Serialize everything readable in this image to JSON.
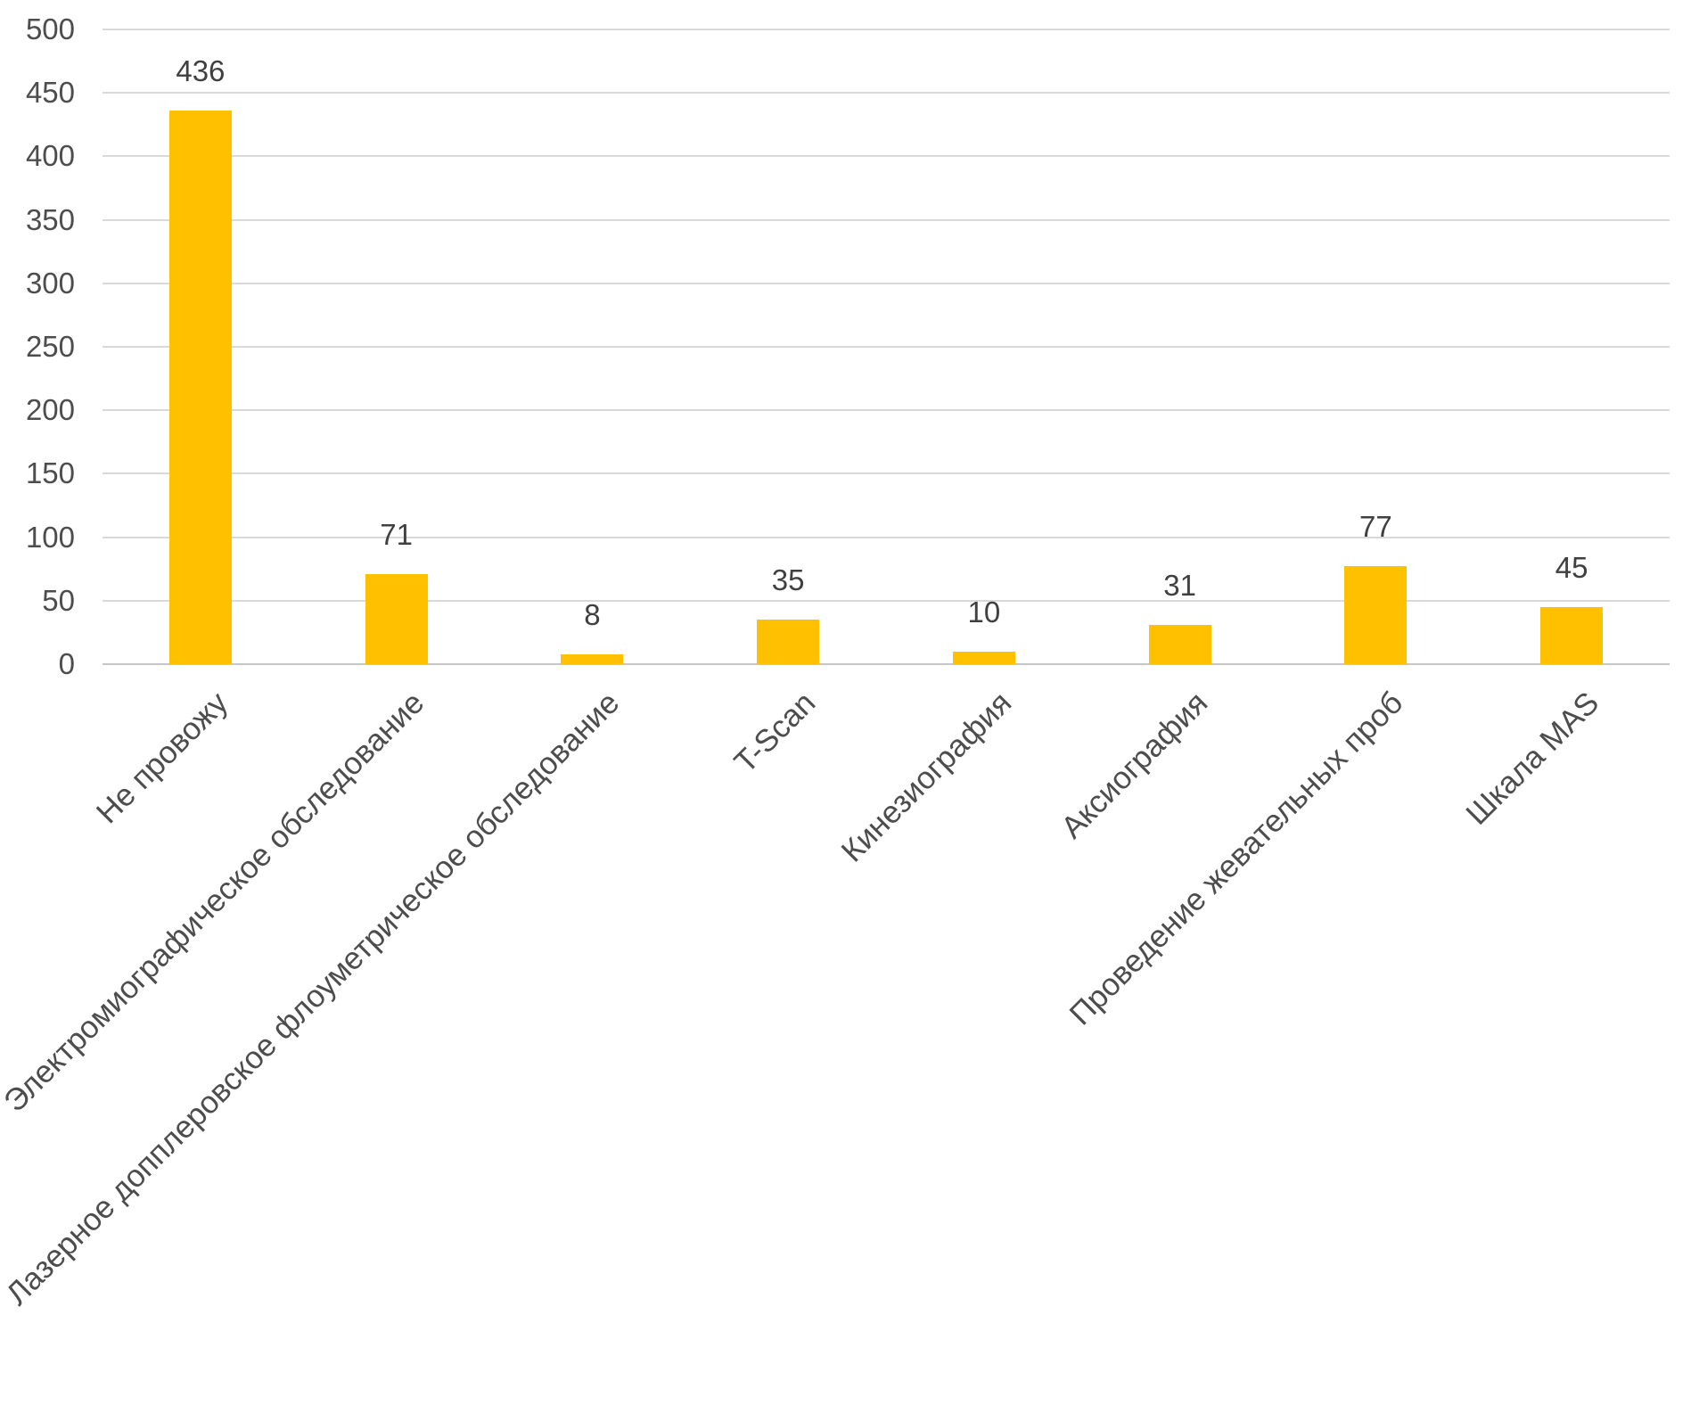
{
  "chart_data": {
    "type": "bar",
    "title": "",
    "xlabel": "",
    "ylabel": "",
    "categories": [
      "Не провожу",
      "Электромиографическое обследование",
      "Лазерное допплеровское флоуметрическое обследование",
      "T-Scan",
      "Кинезиография",
      "Аксиография",
      "Проведение жевательных проб",
      "Шкала MAS"
    ],
    "values": [
      436,
      71,
      8,
      35,
      10,
      31,
      77,
      45
    ],
    "data_labels": [
      "436",
      "71",
      "8",
      "35",
      "10",
      "31",
      "77",
      "45"
    ],
    "ylim": [
      0,
      500
    ],
    "ytick_step": 50,
    "yticks": [
      500,
      450,
      400,
      350,
      300,
      250,
      200,
      150,
      100,
      50,
      0
    ],
    "grid": "horizontal",
    "legend": "none",
    "x_label_rotation_deg": 45,
    "colors": {
      "bar_fill": "#FFC000",
      "gridline": "#D9D9D9",
      "axis_line": "#C6C6C6",
      "axis_text": "#4D4D4D",
      "data_label_text": "#404040"
    }
  }
}
